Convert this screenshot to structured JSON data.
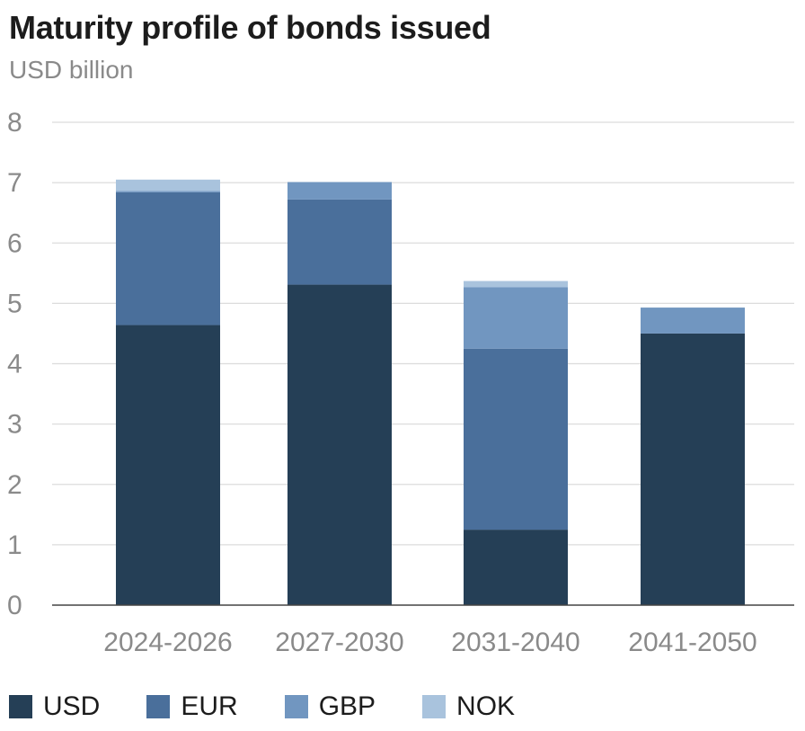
{
  "chart_data": {
    "type": "bar",
    "stacked": true,
    "title": "Maturity profile of bonds issued",
    "subtitle": "USD billion",
    "xlabel": "",
    "ylabel": "USD billion",
    "ylim": [
      0,
      8
    ],
    "yticks": [
      0,
      1,
      2,
      3,
      4,
      5,
      6,
      7,
      8
    ],
    "grid": true,
    "legend_position": "bottom-left",
    "categories": [
      "2024-2026",
      "2027-2030",
      "2031-2040",
      "2041-2050"
    ],
    "series": [
      {
        "name": "USD",
        "color": "#253f56",
        "values": [
          4.64,
          5.31,
          1.25,
          4.5
        ]
      },
      {
        "name": "EUR",
        "color": "#4a6f9b",
        "values": [
          2.2,
          1.41,
          3.0,
          0.0
        ]
      },
      {
        "name": "GBP",
        "color": "#7196c0",
        "values": [
          0.02,
          0.29,
          1.02,
          0.43
        ]
      },
      {
        "name": "NOK",
        "color": "#a9c3dd",
        "values": [
          0.19,
          0.0,
          0.1,
          0.0
        ]
      }
    ]
  }
}
